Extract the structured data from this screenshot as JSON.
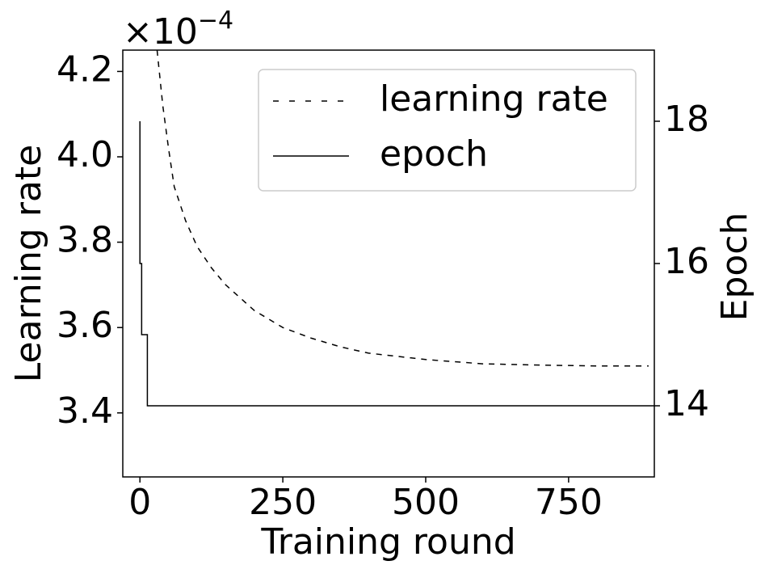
{
  "chart_data": {
    "type": "line",
    "xlabel": "Training round",
    "ylabel": "Learning rate",
    "y2label": "Epoch",
    "y_scale_label": {
      "base": "×10",
      "exponent": "−4"
    },
    "xlim": [
      -30,
      900
    ],
    "xticks": [
      0,
      250,
      500,
      750
    ],
    "ylim": [
      3.25,
      4.25
    ],
    "yticks": [
      3.4,
      3.6,
      3.8,
      {
        "value": 4,
        "label": "4.0"
      },
      4.2
    ],
    "y2lim": [
      13,
      19
    ],
    "y2ticks": [
      14,
      16,
      18
    ],
    "legend": "upper right",
    "series": [
      {
        "name": "learning rate",
        "color": "#000000",
        "dash": "dashed",
        "axis": "y",
        "x": [
          30,
          40,
          50,
          60,
          80,
          100,
          125,
          150,
          200,
          250,
          300,
          350,
          400,
          500,
          600,
          700,
          800,
          890
        ],
        "values": [
          4.25,
          4.12,
          4.02,
          3.93,
          3.85,
          3.79,
          3.74,
          3.7,
          3.64,
          3.6,
          3.575,
          3.555,
          3.54,
          3.525,
          3.515,
          3.512,
          3.51,
          3.51
        ]
      },
      {
        "name": "epoch",
        "color": "#000000",
        "dash": "solid",
        "axis": "y2",
        "x": [
          0,
          0,
          3,
          3,
          13,
          13,
          900
        ],
        "values": [
          18,
          16,
          16,
          15,
          15,
          14,
          14
        ]
      }
    ]
  }
}
